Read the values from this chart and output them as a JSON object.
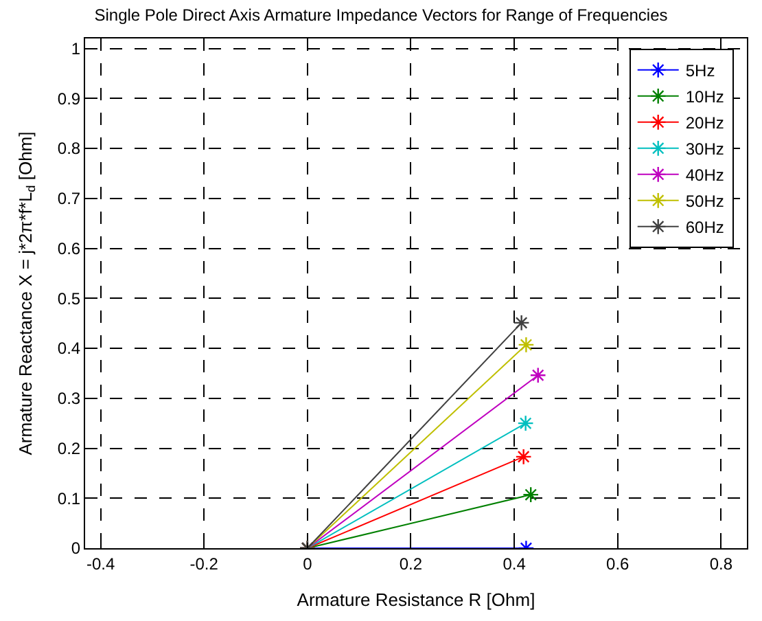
{
  "chart_data": {
    "type": "line",
    "title": "Single Pole Direct Axis Armature Impedance Vectors for Range of Frequencies",
    "xlabel": "Armature Resistance R [Ohm]",
    "ylabel": "Armature Reactance X = j*2π*f*L$_{d}$ [Ohm]",
    "xlim": [
      -0.43,
      0.85
    ],
    "ylim": [
      0,
      1.02
    ],
    "xticks": [
      -0.4,
      -0.2,
      0,
      0.2,
      0.4,
      0.6,
      0.8
    ],
    "yticks": [
      0,
      0.1,
      0.2,
      0.3,
      0.4,
      0.5,
      0.6,
      0.7,
      0.8,
      0.9,
      1
    ],
    "grid": true,
    "legend": "top right",
    "marker": "cross",
    "line_style": "solid",
    "series": [
      {
        "name": "5Hz",
        "color": "#0000ff",
        "x": [
          0,
          0.423
        ],
        "values": [
          0,
          0
        ]
      },
      {
        "name": "10Hz",
        "color": "#008000",
        "x": [
          0,
          0.432
        ],
        "values": [
          0,
          0.107
        ]
      },
      {
        "name": "20Hz",
        "color": "#ff0000",
        "x": [
          0,
          0.418
        ],
        "values": [
          0,
          0.183
        ]
      },
      {
        "name": "30Hz",
        "color": "#00bfbf",
        "x": [
          0,
          0.422
        ],
        "values": [
          0,
          0.25
        ]
      },
      {
        "name": "40Hz",
        "color": "#bf00bf",
        "x": [
          0,
          0.446
        ],
        "values": [
          0,
          0.346
        ]
      },
      {
        "name": "50Hz",
        "color": "#bfbf00",
        "x": [
          0,
          0.423
        ],
        "values": [
          0,
          0.407
        ]
      },
      {
        "name": "60Hz",
        "color": "#404040",
        "x": [
          0,
          0.414
        ],
        "values": [
          0,
          0.451
        ]
      }
    ]
  }
}
